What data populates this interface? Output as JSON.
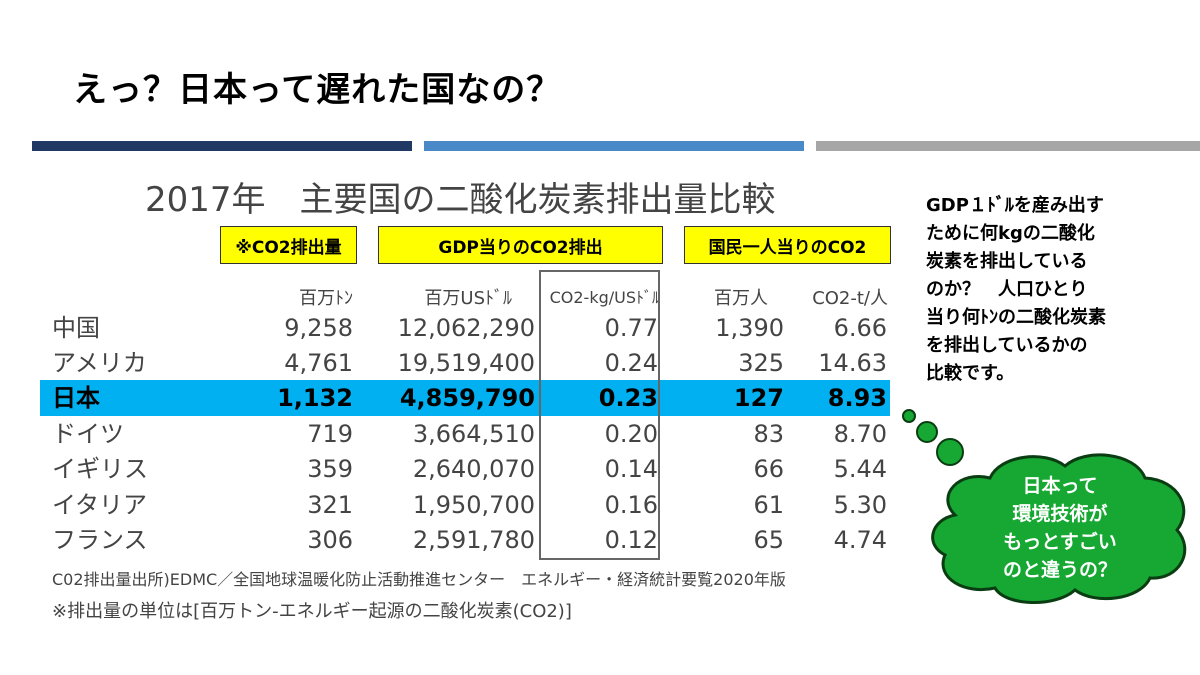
{
  "title": "えっ？日本って遅れた国なの？",
  "subtitle": "2017年　主要国の二酸化炭素排出量比較",
  "headers": {
    "co2": "※CO2排出量",
    "gdp": "GDP当りのCO2排出",
    "per_capita": "国民一人当りのCO2"
  },
  "units": {
    "co2": "百万ﾄﾝ",
    "gdp": "百万USﾄﾞﾙ",
    "intensity": "CO2-kg/USﾄﾞﾙ",
    "population": "百万人",
    "per_person": "CO2-t/人"
  },
  "rows": [
    {
      "country": "中国",
      "co2": "9,258",
      "gdp": "12,062,290",
      "intensity": "0.77",
      "population": "1,390",
      "per_person": "6.66"
    },
    {
      "country": "アメリカ",
      "co2": "4,761",
      "gdp": "19,519,400",
      "intensity": "0.24",
      "population": "325",
      "per_person": "14.63"
    },
    {
      "country": "日本",
      "co2": "1,132",
      "gdp": "4,859,790",
      "intensity": "0.23",
      "population": "127",
      "per_person": "8.93"
    },
    {
      "country": "ドイツ",
      "co2": "719",
      "gdp": "3,664,510",
      "intensity": "0.20",
      "population": "83",
      "per_person": "8.70"
    },
    {
      "country": "イギリス",
      "co2": "359",
      "gdp": "2,640,070",
      "intensity": "0.14",
      "population": "66",
      "per_person": "5.44"
    },
    {
      "country": "イタリア",
      "co2": "321",
      "gdp": "1,950,700",
      "intensity": "0.16",
      "population": "61",
      "per_person": "5.30"
    },
    {
      "country": "フランス",
      "co2": "306",
      "gdp": "2,591,780",
      "intensity": "0.12",
      "population": "65",
      "per_person": "4.74"
    }
  ],
  "highlight_country": "日本",
  "source_note": "C02排出量出所)EDMC／全国地球温暖化防止活動推進センター　エネルギー・経済統計要覧2020年版",
  "unit_note": "※排出量の単位は[百万トン-エネルギー起源の二酸化炭素(CO2)]",
  "explanation": "GDP１ﾄﾞﾙを産み出す\nために何kgの二酸化\n炭素を排出している\nのか？　人口ひとり\n当り何ﾄﾝの二酸化炭素\nを排出しているかの\n比較です。",
  "bubble_text": "日本って\n環境技術が\nもっとすごい\nのと違うの？",
  "colors": {
    "header_yellow": "#ffff00",
    "highlight_blue": "#00b0f0",
    "bubble_green": "#16a832",
    "bar_navy": "#1f3864",
    "bar_blue": "#4a89c8",
    "bar_gray": "#a6a6a6"
  }
}
